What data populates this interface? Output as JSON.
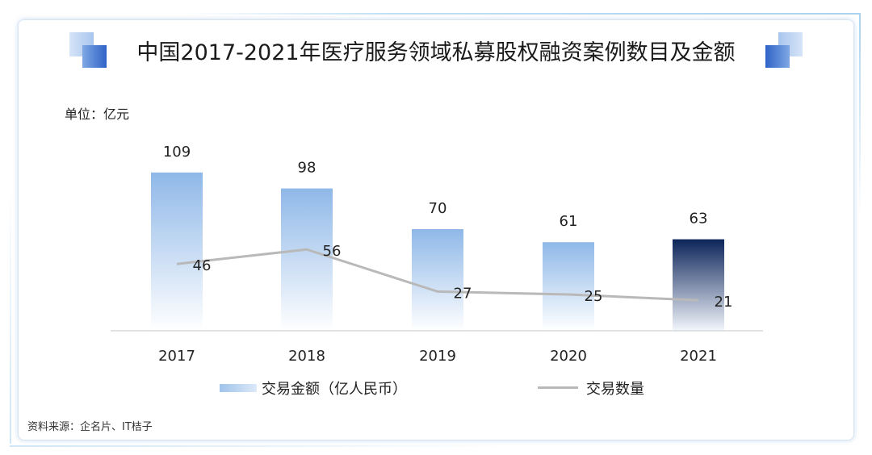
{
  "title": "中国2017-2021年医疗服务领域私募股权融资案例数目及金额",
  "unit_label": "单位：亿元",
  "source": "资料来源：企名片、IT桔子",
  "colors": {
    "bar_top": "#8fb8e8",
    "bar_bottom": "#ffffff",
    "highlight_top": "#0c2459",
    "highlight_bottom": "#f2f6fc",
    "line": "#b9b9b9",
    "axis": "#d9d9d9"
  },
  "chart_data": {
    "type": "bar",
    "categories": [
      "2017",
      "2018",
      "2019",
      "2020",
      "2021"
    ],
    "series": [
      {
        "name": "交易金额（亿人民币）",
        "type": "bar",
        "values": [
          109,
          98,
          70,
          61,
          63
        ],
        "highlight_index": 4
      },
      {
        "name": "交易数量",
        "type": "line",
        "values": [
          46,
          56,
          27,
          25,
          21
        ]
      }
    ],
    "title": "中国2017-2021年医疗服务领域私募股权融资案例数目及金额",
    "ylabel": "单位：亿元",
    "ylim": [
      0,
      120
    ],
    "grid": false,
    "legend": "bottom"
  }
}
